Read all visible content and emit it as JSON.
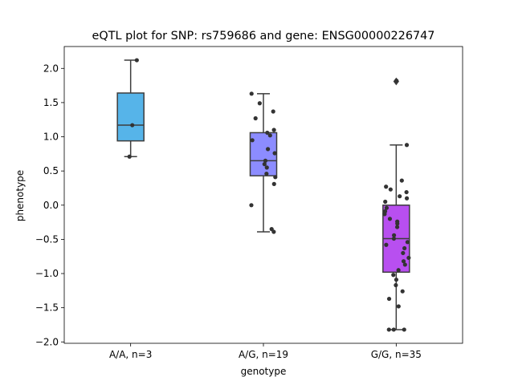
{
  "chart_data": {
    "type": "box",
    "title": "eQTL plot for SNP: rs759686 and gene: ENSG00000226747",
    "xlabel": "genotype",
    "ylabel": "phenotype",
    "ylim": [
      -2.02,
      2.32
    ],
    "yticks": [
      2.0,
      1.5,
      1.0,
      0.5,
      0.0,
      -0.5,
      -1.0,
      -1.5,
      -2.0
    ],
    "ytick_labels": [
      "2.0",
      "1.5",
      "1.0",
      "0.5",
      "0.0",
      "−0.5",
      "−1.0",
      "−1.5",
      "−2.0"
    ],
    "categories": [
      "A/A, n=3",
      "A/G, n=19",
      "G/G, n=35"
    ],
    "grid": false,
    "boxes": [
      {
        "category": "A/A, n=3",
        "color": "#56b4e9",
        "whisker_low": 0.71,
        "q1": 0.94,
        "median": 1.17,
        "q3": 1.64,
        "whisker_high": 2.12,
        "outliers": [],
        "points": [
          2.12,
          1.17,
          0.71
        ]
      },
      {
        "category": "A/G, n=19",
        "color": "#8c8cff",
        "whisker_low": -0.39,
        "q1": 0.43,
        "median": 0.65,
        "q3": 1.06,
        "whisker_high": 1.63,
        "outliers": [],
        "points": [
          1.63,
          1.49,
          1.37,
          1.27,
          1.1,
          1.06,
          1.02,
          0.95,
          0.82,
          0.76,
          0.65,
          0.6,
          0.55,
          0.46,
          0.41,
          0.31,
          0.0,
          -0.35,
          -0.39
        ]
      },
      {
        "category": "G/G, n=35",
        "color": "#b84ff0",
        "whisker_low": -1.82,
        "q1": -0.98,
        "median": -0.49,
        "q3": 0.0,
        "whisker_high": 0.88,
        "outliers": [
          1.81
        ],
        "points": [
          1.82,
          0.88,
          0.36,
          0.27,
          0.23,
          0.19,
          0.13,
          0.1,
          0.05,
          -0.04,
          -0.09,
          -0.13,
          -0.2,
          -0.24,
          -0.27,
          -0.44,
          -0.49,
          -0.54,
          -0.58,
          -0.63,
          -0.7,
          -0.77,
          -0.82,
          -0.87,
          -0.95,
          -1.02,
          -1.09,
          -1.17,
          -1.26,
          -1.37,
          -1.48,
          -1.82,
          -1.82,
          -1.82,
          -0.32
        ]
      }
    ]
  }
}
